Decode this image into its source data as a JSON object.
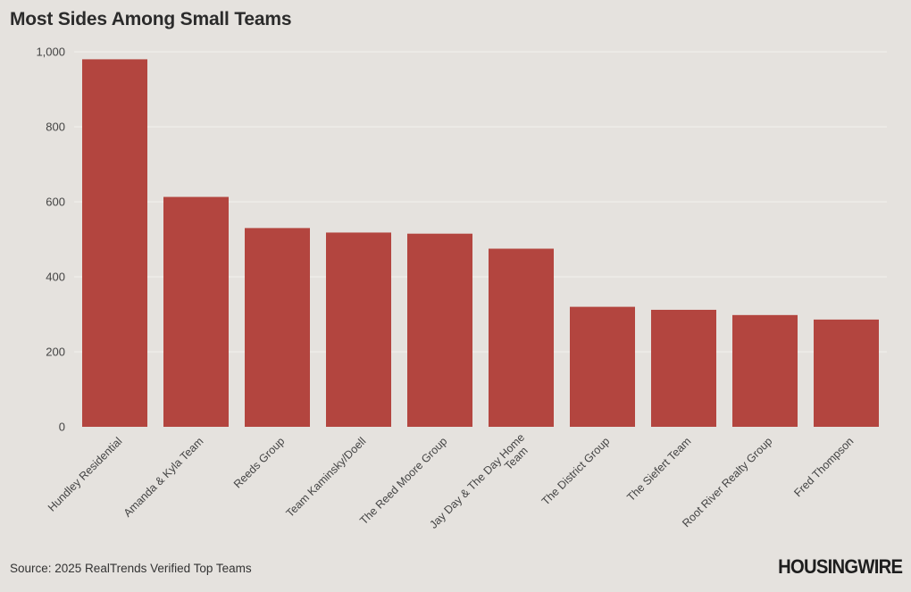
{
  "chart_data": {
    "type": "bar",
    "title": "Most Sides Among Small Teams",
    "categories": [
      "Hundley Residential",
      "Amanda & Kyla Team",
      "Reeds Group",
      "Team Kaminsky/Doell",
      "The Reed Moore Group",
      "Jay Day & The Day Home Team",
      "The District Group",
      "The Siefert Team",
      "Root River Realty Group",
      "Fred Thompson"
    ],
    "values": [
      980,
      613,
      530,
      518,
      515,
      475,
      320,
      312,
      298,
      286
    ],
    "yticks": [
      0,
      200,
      400,
      600,
      800,
      1000
    ],
    "ytick_labels": [
      "0",
      "200",
      "400",
      "600",
      "800",
      "1,000"
    ],
    "ylim": [
      0,
      1000
    ],
    "xlabel": "",
    "ylabel": "",
    "bar_color": "#b3453f",
    "grid": true
  },
  "footer": {
    "source": "Source: 2025 RealTrends Verified Top Teams",
    "logo": "HOUSINGWIRE"
  },
  "colors": {
    "background": "#e5e2de",
    "bar": "#b3453f",
    "grid": "#f4f2ef"
  }
}
